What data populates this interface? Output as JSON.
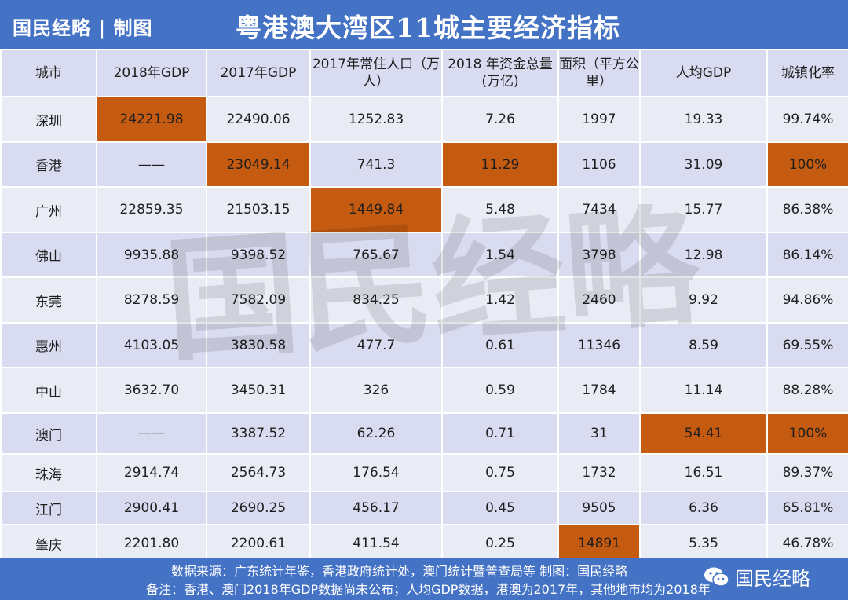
{
  "header": {
    "brand": "国民经略 | 制图",
    "title": "粤港澳大湾区11城主要经济指标"
  },
  "table": {
    "columns": [
      "城市",
      "2018年GDP",
      "2017年GDP",
      "2017年常住人口（万人）",
      "2018 年资金总量(万亿)",
      "面积（平方公里）",
      "人均GDP",
      "城镇化率"
    ],
    "rows": [
      {
        "cells": [
          "深圳",
          "24221.98",
          "22490.06",
          "1252.83",
          "7.26",
          "1997",
          "19.33",
          "99.74%"
        ],
        "highlight": [
          1
        ]
      },
      {
        "cells": [
          "香港",
          "——",
          "23049.14",
          "741.3",
          "11.29",
          "1106",
          "31.09",
          "100%"
        ],
        "highlight": [
          2,
          4,
          7
        ]
      },
      {
        "cells": [
          "广州",
          "22859.35",
          "21503.15",
          "1449.84",
          "5.48",
          "7434",
          "15.77",
          "86.38%"
        ],
        "highlight": [
          3
        ]
      },
      {
        "cells": [
          "佛山",
          "9935.88",
          "9398.52",
          "765.67",
          "1.54",
          "3798",
          "12.98",
          "86.14%"
        ],
        "highlight": []
      },
      {
        "cells": [
          "东莞",
          "8278.59",
          "7582.09",
          "834.25",
          "1.42",
          "2460",
          "9.92",
          "94.86%"
        ],
        "highlight": []
      },
      {
        "cells": [
          "惠州",
          "4103.05",
          "3830.58",
          "477.7",
          "0.61",
          "11346",
          "8.59",
          "69.55%"
        ],
        "highlight": []
      },
      {
        "cells": [
          "中山",
          "3632.70",
          "3450.31",
          "326",
          "0.59",
          "1784",
          "11.14",
          "88.28%"
        ],
        "highlight": []
      },
      {
        "cells": [
          "澳门",
          "——",
          "3387.52",
          "62.26",
          "0.71",
          "31",
          "54.41",
          "100%"
        ],
        "highlight": [
          6,
          7
        ]
      },
      {
        "cells": [
          "珠海",
          "2914.74",
          "2564.73",
          "176.54",
          "0.75",
          "1732",
          "16.51",
          "89.37%"
        ],
        "highlight": []
      },
      {
        "cells": [
          "江门",
          "2900.41",
          "2690.25",
          "456.17",
          "0.45",
          "9505",
          "6.36",
          "65.81%"
        ],
        "highlight": []
      },
      {
        "cells": [
          "肇庆",
          "2201.80",
          "2200.61",
          "411.54",
          "0.25",
          "14891",
          "5.35",
          "46.78%"
        ],
        "highlight": [
          5
        ]
      }
    ]
  },
  "footer": {
    "source": "数据来源：广东统计年鉴，香港政府统计处，澳门统计暨普查局等        制图：国民经略",
    "note": "备注：香港、澳门2018年GDP数据尚未公布；人均GDP数据，港澳为2017年，其他地市均为2018年",
    "wechat_name": "国民经略",
    "wechat_icon": "wechat-icon"
  },
  "watermark": {
    "text": "国民经略"
  },
  "colors": {
    "header_bg": "#4472c4",
    "highlight": "#c55a11",
    "row_light": "#e9ebf5",
    "row_dark": "#d9dcf0"
  }
}
